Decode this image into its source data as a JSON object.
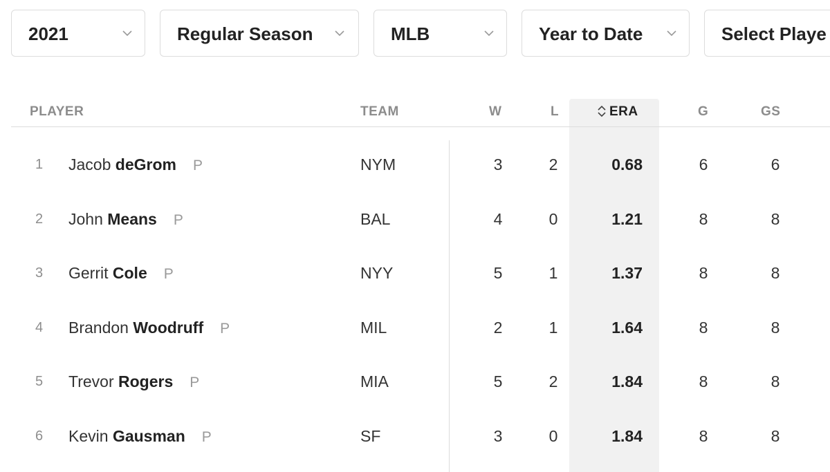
{
  "filters": [
    {
      "label": "2021"
    },
    {
      "label": "Regular Season"
    },
    {
      "label": "MLB"
    },
    {
      "label": "Year to Date"
    },
    {
      "label": "Select Playe"
    }
  ],
  "table": {
    "headers": {
      "player": "PLAYER",
      "team": "TEAM",
      "w": "W",
      "l": "L",
      "era": "ERA",
      "g": "G",
      "gs": "GS"
    },
    "sorted_column": "ERA",
    "rows": [
      {
        "rank": "1",
        "first": "Jacob",
        "last": "deGrom",
        "pos": "P",
        "team": "NYM",
        "w": "3",
        "l": "2",
        "era": "0.68",
        "g": "6",
        "gs": "6"
      },
      {
        "rank": "2",
        "first": "John",
        "last": "Means",
        "pos": "P",
        "team": "BAL",
        "w": "4",
        "l": "0",
        "era": "1.21",
        "g": "8",
        "gs": "8"
      },
      {
        "rank": "3",
        "first": "Gerrit",
        "last": "Cole",
        "pos": "P",
        "team": "NYY",
        "w": "5",
        "l": "1",
        "era": "1.37",
        "g": "8",
        "gs": "8"
      },
      {
        "rank": "4",
        "first": "Brandon",
        "last": "Woodruff",
        "pos": "P",
        "team": "MIL",
        "w": "2",
        "l": "1",
        "era": "1.64",
        "g": "8",
        "gs": "8"
      },
      {
        "rank": "5",
        "first": "Trevor",
        "last": "Rogers",
        "pos": "P",
        "team": "MIA",
        "w": "5",
        "l": "2",
        "era": "1.84",
        "g": "8",
        "gs": "8"
      },
      {
        "rank": "6",
        "first": "Kevin",
        "last": "Gausman",
        "pos": "P",
        "team": "SF",
        "w": "3",
        "l": "0",
        "era": "1.84",
        "g": "8",
        "gs": "8"
      }
    ]
  },
  "icons": {
    "dropdown": "chevron-down-icon",
    "sort": "sort-icon"
  },
  "colors": {
    "sorted_column_bg": "#f1f1f1",
    "border": "#dcdcdc",
    "header_text": "#8c8c8c"
  }
}
